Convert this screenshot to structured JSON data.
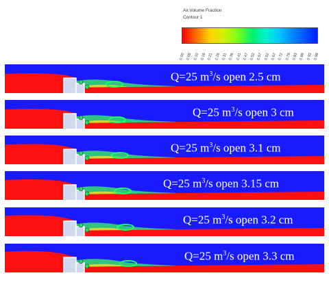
{
  "legend": {
    "title": "Air.Volume Fraction",
    "subtitle": "Contour 1",
    "ticks": [
      "0.00",
      "0.05",
      "0.10",
      "0.16",
      "0.21",
      "0.26",
      "0.31",
      "0.36",
      "0.41",
      "0.47",
      "0.52",
      "0.57",
      "0.62",
      "0.67",
      "0.72",
      "0.78",
      "0.83",
      "0.88",
      "0.93",
      "0.98"
    ],
    "colors": {
      "water": "#ff1010",
      "air": "#1a1aff",
      "gate": "#ffffff",
      "structure": "#d0d8f0"
    }
  },
  "panels": [
    {
      "label_prefix": "Q=25 m",
      "superscript": "3",
      "label_suffix": "/s open 2.5 cm"
    },
    {
      "label_prefix": "Q=25 m",
      "superscript": "3",
      "label_suffix": "/s open 3 cm"
    },
    {
      "label_prefix": "Q=25 m",
      "superscript": "3",
      "label_suffix": "/s open 3.1 cm"
    },
    {
      "label_prefix": "Q=25 m",
      "superscript": "3",
      "label_suffix": "/s open 3.15 cm"
    },
    {
      "label_prefix": "Q=25 m",
      "superscript": "3",
      "label_suffix": "/s open 3.2 cm"
    },
    {
      "label_prefix": "Q=25 m",
      "superscript": "3",
      "label_suffix": "/s open 3.3 cm"
    }
  ]
}
